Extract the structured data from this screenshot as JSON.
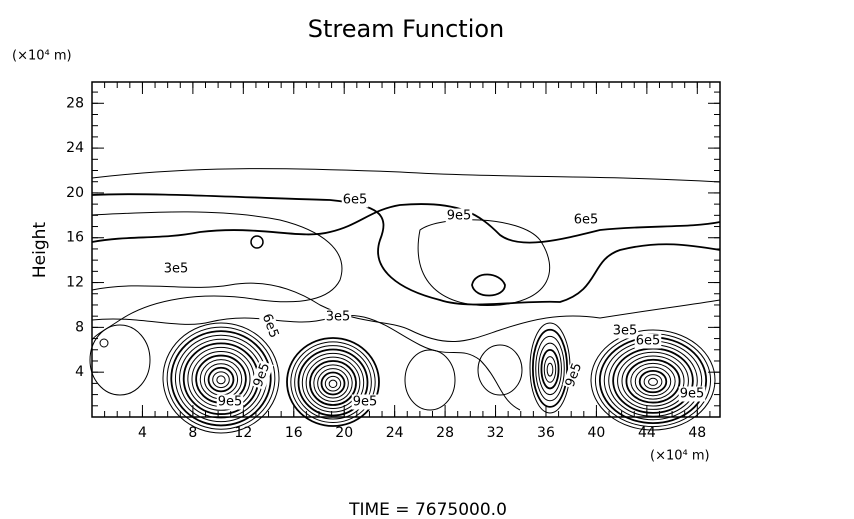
{
  "chart_data": {
    "type": "contour",
    "title": "Stream Function",
    "y_unit_label": "(×10⁴ m)",
    "y_label": "Height",
    "x_label": "(×10⁴ m)",
    "footer": "TIME = 7675000.0",
    "xlim": [
      0,
      49.8
    ],
    "ylim": [
      0,
      29.9
    ],
    "xticks": [
      4,
      8,
      12,
      16,
      20,
      24,
      28,
      32,
      36,
      40,
      44,
      48
    ],
    "yticks": [
      4,
      8,
      12,
      16,
      20,
      24,
      28
    ],
    "contour_labels": [
      "6e5",
      "9e5",
      "6e5",
      "3e5",
      "3e5",
      "6e5",
      "9e5",
      "3e5",
      "6e5",
      "9e5",
      "9e5",
      "9e5",
      "9e5"
    ]
  }
}
